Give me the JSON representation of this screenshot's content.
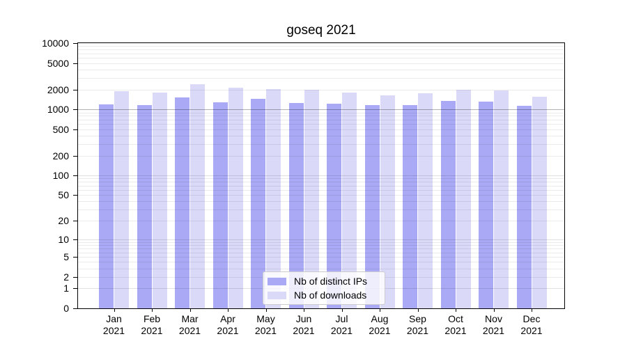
{
  "chart_data": {
    "type": "bar",
    "title": "goseq 2021",
    "categories": [
      "Jan",
      "Feb",
      "Mar",
      "Apr",
      "May",
      "Jun",
      "Jul",
      "Aug",
      "Sep",
      "Oct",
      "Nov",
      "Dec"
    ],
    "year_label": "2021",
    "series": [
      {
        "name": "Nb of distinct IPs",
        "color": "#a9a9f5",
        "values": [
          1180,
          1160,
          1500,
          1290,
          1445,
          1240,
          1230,
          1170,
          1175,
          1340,
          1320,
          1130
        ]
      },
      {
        "name": "Nb of downloads",
        "color": "#dadaf8",
        "values": [
          1870,
          1810,
          2400,
          2110,
          2045,
          1960,
          1780,
          1640,
          1745,
          1975,
          1950,
          1565
        ]
      }
    ],
    "y_ticks": [
      0,
      1,
      2,
      5,
      10,
      20,
      50,
      100,
      200,
      500,
      1000,
      2000,
      5000,
      10000
    ],
    "scale": "log1p",
    "ylim": [
      0,
      10000
    ],
    "grid": true,
    "legend_position": "bottom-center",
    "colors": {
      "bar_ips": "#a9a9f5",
      "bar_downloads": "#dadaf8",
      "grid_minor": "rgba(0,0,0,0.08)",
      "grid_decade": "rgba(0,0,0,0.12)",
      "grid_emphasis": "rgba(0,0,0,0.30)",
      "axis": "#000000",
      "legend_border": "#cccccc"
    }
  }
}
